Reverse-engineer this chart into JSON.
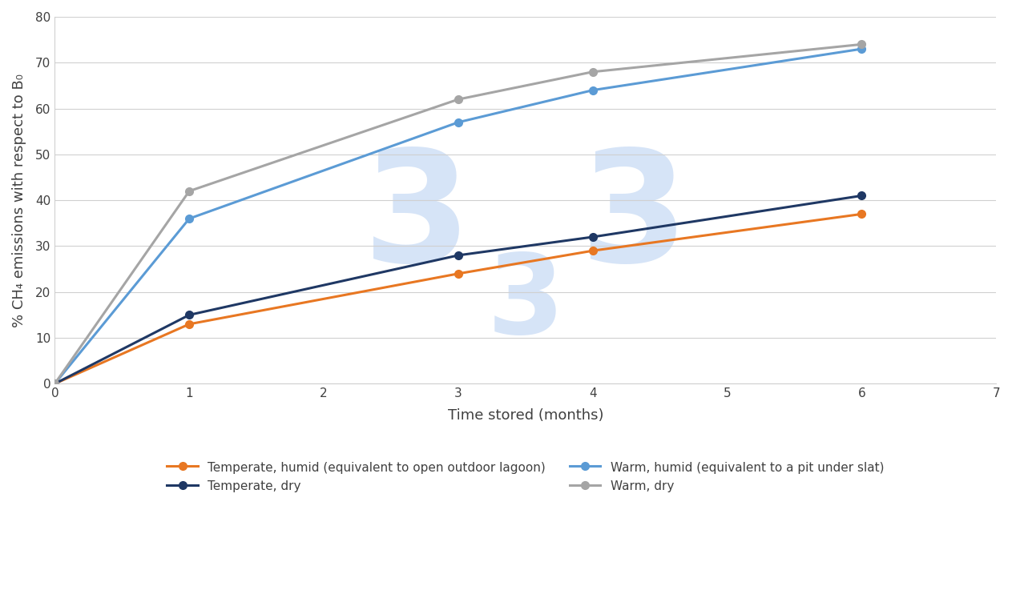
{
  "series": [
    {
      "label": "Temperate, humid (equivalent to open outdoor lagoon)",
      "color": "#E87722",
      "x": [
        0,
        1,
        3,
        4,
        6
      ],
      "y": [
        0,
        13,
        24,
        29,
        37
      ]
    },
    {
      "label": "Warm, humid (equivalent to a pit under slat)",
      "color": "#5B9BD5",
      "x": [
        0,
        1,
        3,
        4,
        6
      ],
      "y": [
        0,
        36,
        57,
        64,
        73
      ]
    },
    {
      "label": "Temperate, dry",
      "color": "#1F3864",
      "x": [
        0,
        1,
        3,
        4,
        6
      ],
      "y": [
        0,
        15,
        28,
        32,
        41
      ]
    },
    {
      "label": "Warm, dry",
      "color": "#A5A5A5",
      "x": [
        0,
        1,
        3,
        4,
        6
      ],
      "y": [
        0,
        42,
        62,
        68,
        74
      ]
    }
  ],
  "xlabel": "Time stored (months)",
  "ylabel": "% CH₄ emissions with respect to B₀",
  "xlim": [
    0,
    7
  ],
  "ylim": [
    0,
    80
  ],
  "xticks": [
    0,
    1,
    2,
    3,
    4,
    5,
    6,
    7
  ],
  "yticks": [
    0,
    10,
    20,
    30,
    40,
    50,
    60,
    70,
    80
  ],
  "background_color": "#FFFFFF",
  "watermark_color": "#D6E4F7",
  "legend_order": [
    0,
    2,
    1,
    3
  ]
}
